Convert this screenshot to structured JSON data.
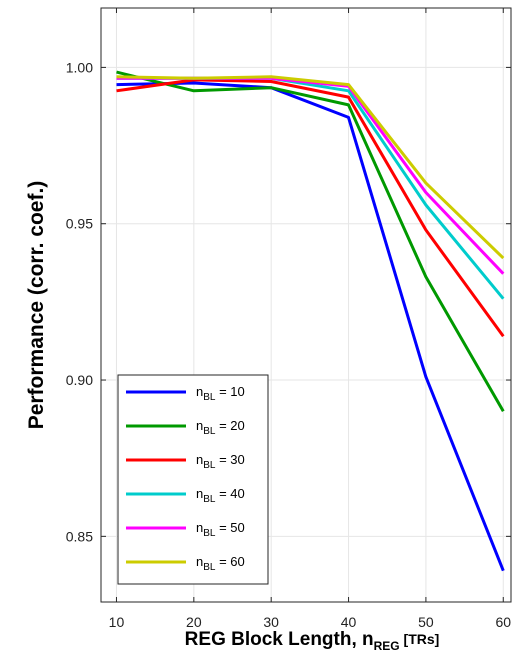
{
  "chart_data": {
    "type": "line",
    "title": "",
    "xlabel": {
      "main": "REG Block Length, n",
      "sub": "REG",
      "suffix": " [TRs]"
    },
    "ylabel": "Performance (corr. coef.)",
    "x": [
      10,
      20,
      30,
      40,
      50,
      60
    ],
    "xlim": [
      8,
      61
    ],
    "ylim": [
      0.829,
      1.019
    ],
    "xticks": [
      "10",
      "20",
      "30",
      "40",
      "50",
      "60"
    ],
    "yticks": [
      "0.85",
      "0.90",
      "0.95",
      "1.00"
    ],
    "grid": true,
    "legend_position": "bottom-left",
    "series": [
      {
        "name": "n_BL = 10",
        "label_main": "n",
        "label_sub": "BL",
        "label_rest": " = 10",
        "color": "#0000ff",
        "values": [
          0.9945,
          0.995,
          0.9935,
          0.984,
          0.901,
          0.839
        ]
      },
      {
        "name": "n_BL = 20",
        "label_main": "n",
        "label_sub": "BL",
        "label_rest": " = 20",
        "color": "#009900",
        "values": [
          0.9985,
          0.9925,
          0.9935,
          0.988,
          0.933,
          0.89
        ]
      },
      {
        "name": "n_BL = 30",
        "label_main": "n",
        "label_sub": "BL",
        "label_rest": " = 30",
        "color": "#ff0000",
        "values": [
          0.9925,
          0.996,
          0.9955,
          0.9905,
          0.948,
          0.914
        ]
      },
      {
        "name": "n_BL = 40",
        "label_main": "n",
        "label_sub": "BL",
        "label_rest": " = 40",
        "color": "#00cccc",
        "values": [
          0.9965,
          0.9965,
          0.9965,
          0.9925,
          0.956,
          0.926
        ]
      },
      {
        "name": "n_BL = 50",
        "label_main": "n",
        "label_sub": "BL",
        "label_rest": " = 50",
        "color": "#ff00ff",
        "values": [
          0.9965,
          0.9965,
          0.9965,
          0.994,
          0.96,
          0.934
        ]
      },
      {
        "name": "n_BL = 60",
        "label_main": "n",
        "label_sub": "BL",
        "label_rest": " = 60",
        "color": "#cccc00",
        "values": [
          0.997,
          0.9965,
          0.997,
          0.9945,
          0.963,
          0.939
        ]
      }
    ]
  }
}
